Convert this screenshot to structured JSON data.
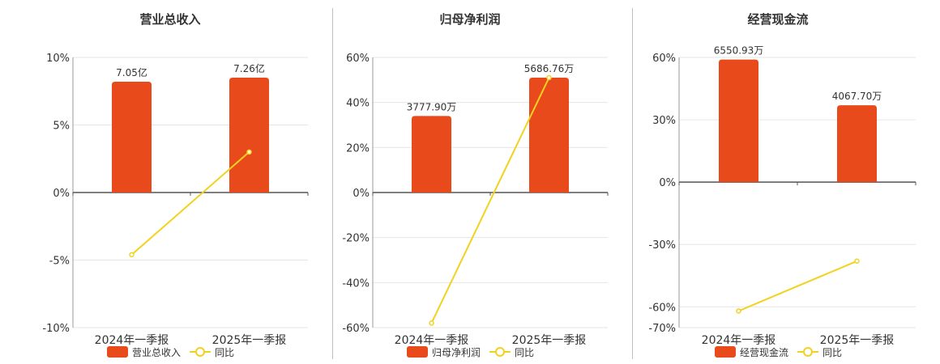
{
  "colors": {
    "bar": "#E84A1B",
    "line": "#F2D21F",
    "axis": "#555555",
    "grid": "#e6e6e6",
    "text": "#333333"
  },
  "chart_data": [
    {
      "type": "bar",
      "title": "营业总收入",
      "categories": [
        "2024年一季报",
        "2025年一季报"
      ],
      "y_ticks": [
        "10%",
        "5%",
        "0%",
        "-5%",
        "-10%"
      ],
      "ylim": [
        -10,
        10
      ],
      "series": [
        {
          "name": "营业总收入",
          "type": "bar",
          "values": [
            8.2,
            8.5
          ],
          "labels": [
            "7.05亿",
            "7.26亿"
          ]
        },
        {
          "name": "同比",
          "type": "line",
          "values": [
            -4.6,
            3.0
          ]
        }
      ],
      "grid": true,
      "legend": "bottom"
    },
    {
      "type": "bar",
      "title": "归母净利润",
      "categories": [
        "2024年一季报",
        "2025年一季报"
      ],
      "y_ticks": [
        "60%",
        "40%",
        "20%",
        "0%",
        "-20%",
        "-40%",
        "-60%"
      ],
      "ylim": [
        -60,
        60
      ],
      "series": [
        {
          "name": "归母净利润",
          "type": "bar",
          "values": [
            34,
            51
          ],
          "labels": [
            "3777.90万",
            "5686.76万"
          ]
        },
        {
          "name": "同比",
          "type": "line",
          "values": [
            -58,
            51
          ]
        }
      ],
      "grid": true,
      "legend": "bottom"
    },
    {
      "type": "bar",
      "title": "经营现金流",
      "categories": [
        "2024年一季报",
        "2025年一季报"
      ],
      "y_ticks": [
        "60%",
        "30%",
        "0%",
        "-30%",
        "-60%",
        "-70%"
      ],
      "ylim": [
        -70,
        60
      ],
      "series": [
        {
          "name": "经营现金流",
          "type": "bar",
          "values": [
            59,
            37
          ],
          "labels": [
            "6550.93万",
            "4067.70万"
          ]
        },
        {
          "name": "同比",
          "type": "line",
          "values": [
            -62,
            -38
          ]
        }
      ],
      "grid": true,
      "legend": "bottom"
    }
  ]
}
